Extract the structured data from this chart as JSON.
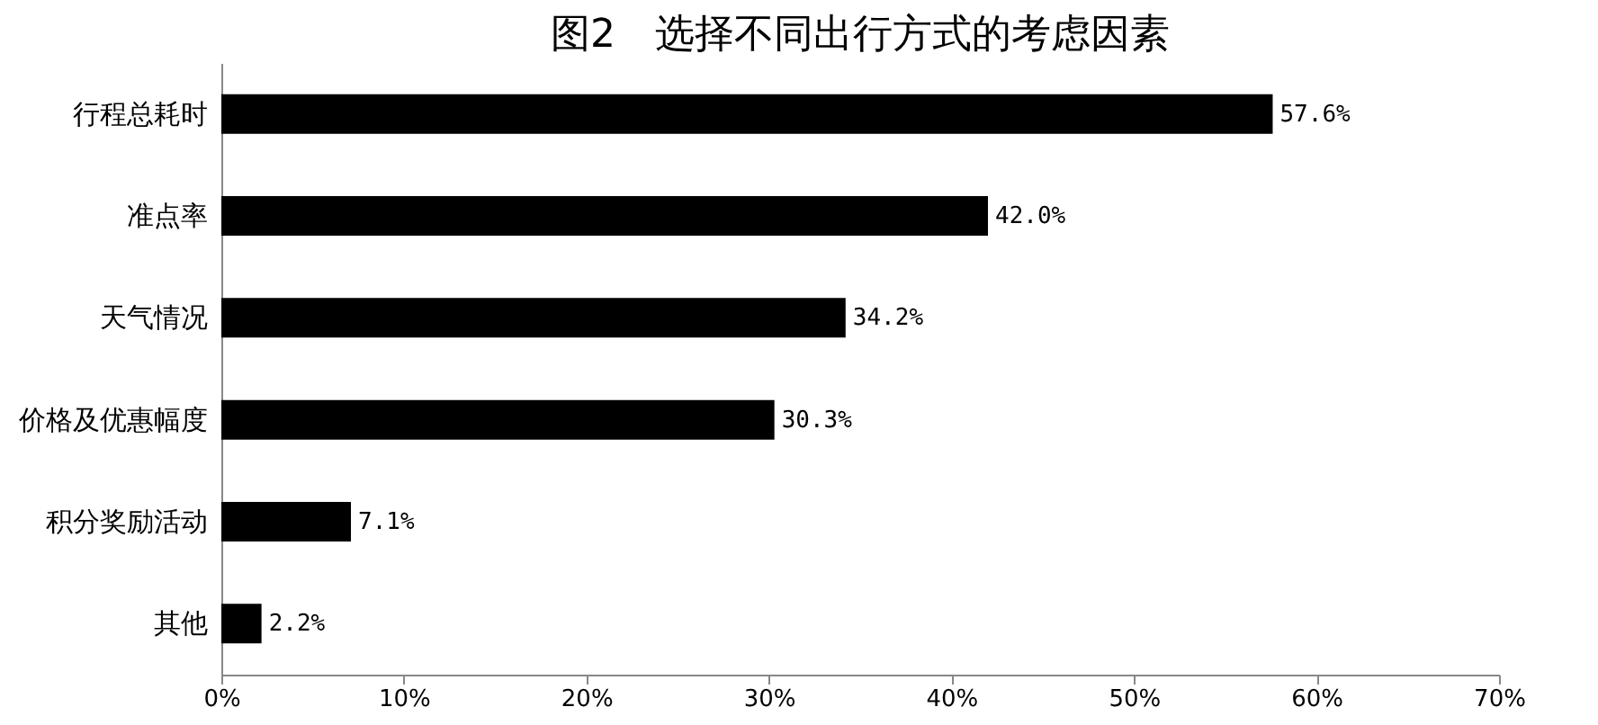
{
  "chart_data": {
    "type": "bar",
    "orientation": "horizontal",
    "title": "图2　选择不同出行方式的考虑因素",
    "categories": [
      "行程总耗时",
      "准点率",
      "天气情况",
      "价格及优惠幅度",
      "积分奖励活动",
      "其他"
    ],
    "values": [
      57.6,
      42.0,
      34.2,
      30.3,
      7.1,
      2.2
    ],
    "value_labels": [
      "57.6%",
      "42.0%",
      "34.2%",
      "30.3%",
      "7.1%",
      "2.2%"
    ],
    "color": "#000000",
    "xlim": [
      0,
      70
    ],
    "xticks": [
      {
        "value": 0,
        "label": "0%"
      },
      {
        "value": 10,
        "label": "10%"
      },
      {
        "value": 20,
        "label": "20%"
      },
      {
        "value": 30,
        "label": "30%"
      },
      {
        "value": 40,
        "label": "40%"
      },
      {
        "value": 50,
        "label": "50%"
      },
      {
        "value": 60,
        "label": "60%"
      },
      {
        "value": 70,
        "label": "70%"
      }
    ],
    "grid": false
  }
}
